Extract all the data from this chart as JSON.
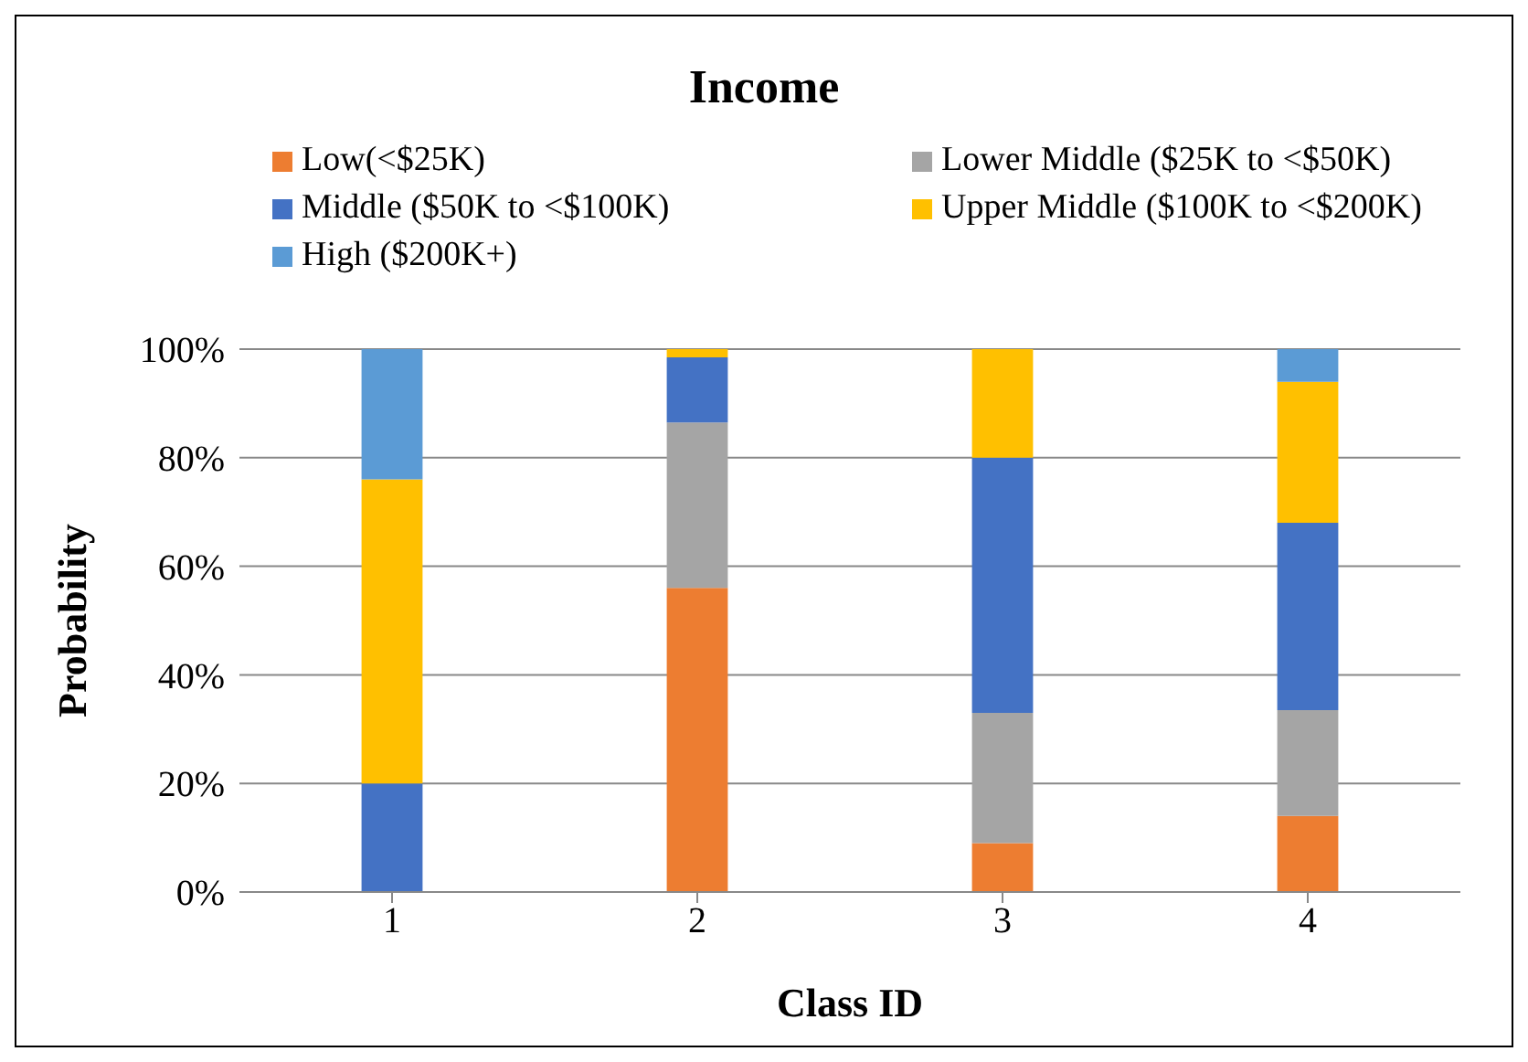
{
  "chart_data": {
    "type": "bar",
    "title": "Income",
    "xlabel": "Class ID",
    "ylabel": "Probability",
    "categories": [
      "1",
      "2",
      "3",
      "4"
    ],
    "stacked": true,
    "series": [
      {
        "name": "Low(<$25K)",
        "color": "#ed7d31",
        "values": [
          0,
          56,
          9,
          14
        ]
      },
      {
        "name": "Lower Middle ($25K to <$50K)",
        "color": "#a5a5a5",
        "values": [
          0,
          30.5,
          24,
          19.5
        ]
      },
      {
        "name": "Middle ($50K to <$100K)",
        "color": "#4472c4",
        "values": [
          20,
          12,
          47,
          34.5
        ]
      },
      {
        "name": "Upper Middle ($100K to <$200K)",
        "color": "#ffc000",
        "values": [
          56,
          1.5,
          20,
          26
        ]
      },
      {
        "name": "High ($200K+)",
        "color": "#5b9bd5",
        "values": [
          24,
          0,
          0,
          6
        ]
      }
    ],
    "ylim": [
      0,
      100
    ],
    "yticks": [
      {
        "value": 0,
        "label": "0%"
      },
      {
        "value": 20,
        "label": "20%"
      },
      {
        "value": 40,
        "label": "40%"
      },
      {
        "value": 60,
        "label": "60%"
      },
      {
        "value": 80,
        "label": "80%"
      },
      {
        "value": 100,
        "label": "100%"
      }
    ],
    "grid": "y",
    "legend": "top"
  }
}
